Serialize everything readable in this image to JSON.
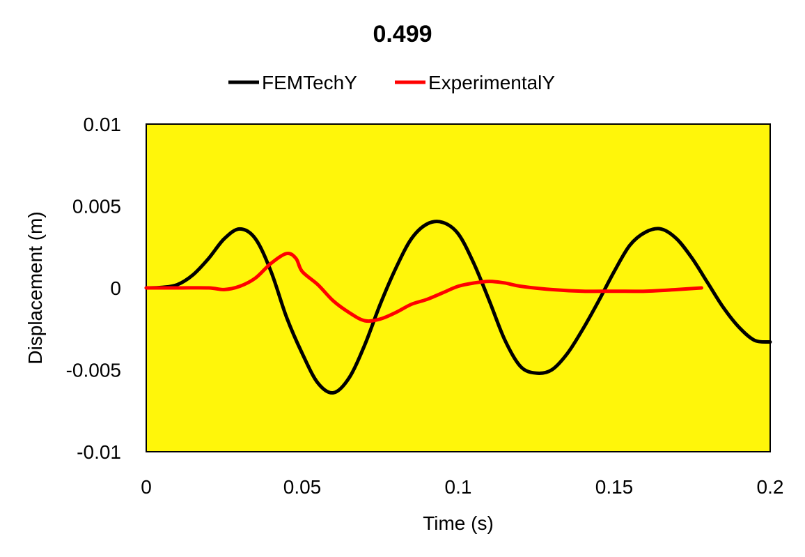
{
  "chart_data": {
    "type": "line",
    "title": "0.499",
    "xlabel": "Time (s)",
    "ylabel": "Displacement (m)",
    "xlim": [
      0,
      0.2
    ],
    "ylim": [
      -0.01,
      0.01
    ],
    "x_ticks": [
      "0",
      "0.05",
      "0.1",
      "0.15",
      "0.2"
    ],
    "y_ticks": [
      "0.01",
      "0.005",
      "0",
      "-0.005",
      "-0.01"
    ],
    "grid": false,
    "legend_position": "top",
    "plot_background": "#FFF60A",
    "series": [
      {
        "name": "FEMTechY",
        "color": "#000000",
        "points": [
          [
            0,
            0
          ],
          [
            0.005,
            3e-05
          ],
          [
            0.01,
            0.0002
          ],
          [
            0.015,
            0.0008
          ],
          [
            0.02,
            0.0018
          ],
          [
            0.025,
            0.003
          ],
          [
            0.03,
            0.0036
          ],
          [
            0.035,
            0.003
          ],
          [
            0.04,
            0.001
          ],
          [
            0.045,
            -0.0018
          ],
          [
            0.05,
            -0.004
          ],
          [
            0.055,
            -0.0058
          ],
          [
            0.06,
            -0.0064
          ],
          [
            0.065,
            -0.0055
          ],
          [
            0.07,
            -0.0035
          ],
          [
            0.075,
            -0.001
          ],
          [
            0.08,
            0.0012
          ],
          [
            0.085,
            0.003
          ],
          [
            0.09,
            0.0039
          ],
          [
            0.095,
            0.004
          ],
          [
            0.1,
            0.0033
          ],
          [
            0.105,
            0.0015
          ],
          [
            0.11,
            -0.0008
          ],
          [
            0.115,
            -0.0032
          ],
          [
            0.12,
            -0.0048
          ],
          [
            0.125,
            -0.0052
          ],
          [
            0.13,
            -0.005
          ],
          [
            0.135,
            -0.004
          ],
          [
            0.14,
            -0.0025
          ],
          [
            0.145,
            -0.0008
          ],
          [
            0.15,
            0.001
          ],
          [
            0.155,
            0.0026
          ],
          [
            0.16,
            0.0034
          ],
          [
            0.165,
            0.0036
          ],
          [
            0.17,
            0.003
          ],
          [
            0.175,
            0.0018
          ],
          [
            0.18,
            0.0003
          ],
          [
            0.185,
            -0.0012
          ],
          [
            0.19,
            -0.0024
          ],
          [
            0.195,
            -0.0032
          ],
          [
            0.2,
            -0.0033
          ]
        ]
      },
      {
        "name": "ExperimentalY",
        "color": "#FF0000",
        "points": [
          [
            0,
            0
          ],
          [
            0.01,
            0
          ],
          [
            0.02,
            0
          ],
          [
            0.025,
            -0.0001
          ],
          [
            0.03,
            0.0001
          ],
          [
            0.035,
            0.0006
          ],
          [
            0.04,
            0.0015
          ],
          [
            0.045,
            0.0021
          ],
          [
            0.048,
            0.0018
          ],
          [
            0.05,
            0.001
          ],
          [
            0.055,
            0.0002
          ],
          [
            0.06,
            -0.0008
          ],
          [
            0.065,
            -0.0015
          ],
          [
            0.07,
            -0.002
          ],
          [
            0.075,
            -0.0019
          ],
          [
            0.08,
            -0.0015
          ],
          [
            0.085,
            -0.001
          ],
          [
            0.09,
            -0.0007
          ],
          [
            0.095,
            -0.0003
          ],
          [
            0.1,
            0.0001
          ],
          [
            0.105,
            0.0003
          ],
          [
            0.11,
            0.0004
          ],
          [
            0.115,
            0.0003
          ],
          [
            0.12,
            0.0001
          ],
          [
            0.13,
            -0.0001
          ],
          [
            0.14,
            -0.0002
          ],
          [
            0.15,
            -0.0002
          ],
          [
            0.16,
            -0.0002
          ],
          [
            0.17,
            -0.0001
          ],
          [
            0.178,
            0
          ]
        ]
      }
    ]
  }
}
